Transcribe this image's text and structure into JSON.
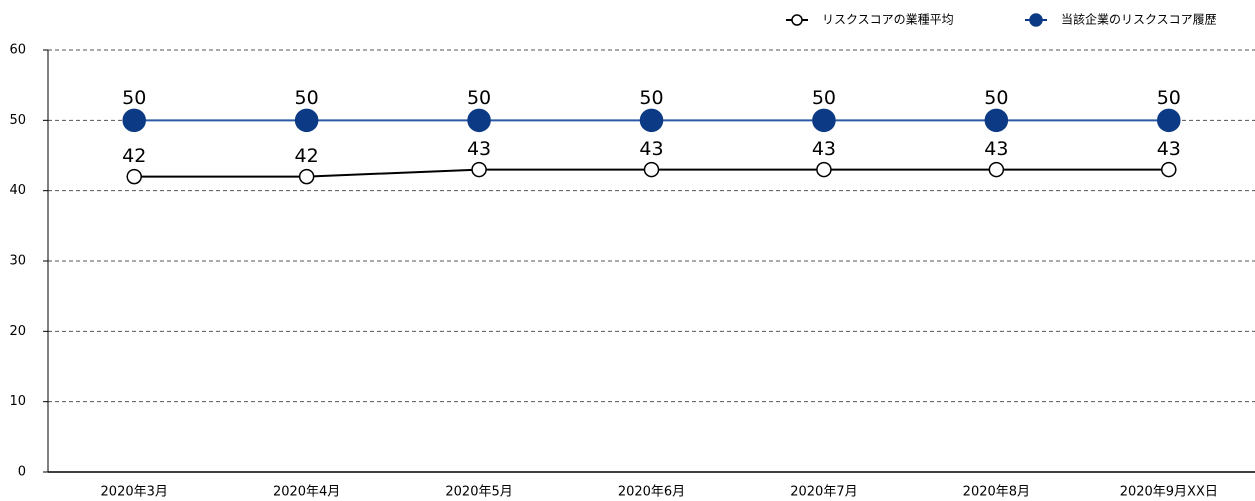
{
  "chart_data": {
    "type": "line",
    "categories": [
      "2020年3月",
      "2020年4月",
      "2020年5月",
      "2020年6月",
      "2020年7月",
      "2020年8月",
      "2020年9月XX日"
    ],
    "series": [
      {
        "name": "リスクスコアの業種平均",
        "color": "#000000",
        "values": [
          42,
          42,
          43,
          43,
          43,
          43,
          43
        ]
      },
      {
        "name": "当該企業のリスクスコア履歴",
        "color": "#0d3a84",
        "values": [
          50,
          50,
          50,
          50,
          50,
          50,
          50
        ]
      }
    ],
    "ylim": [
      0,
      60
    ],
    "yticks": [
      0,
      10,
      20,
      30,
      40,
      50,
      60
    ],
    "grid": true,
    "legend": "top-right"
  }
}
